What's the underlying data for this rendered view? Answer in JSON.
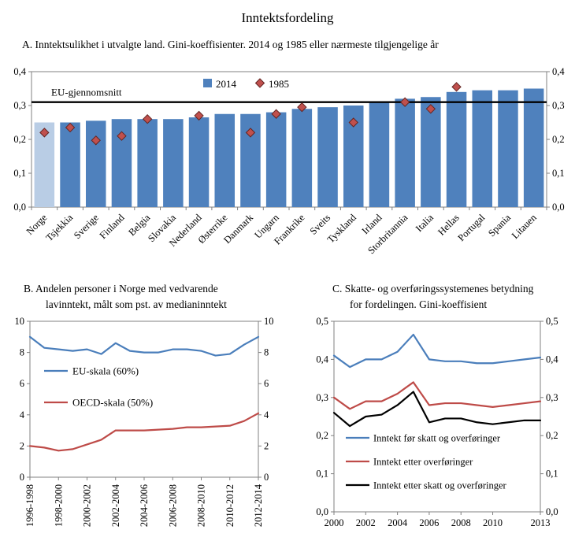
{
  "title": "Inntektsfordeling",
  "panels": {
    "a": {
      "label": "A. Inntektsulikhet i utvalgte land. Gini-koeffisienter. 2014 og 1985 eller nærmeste tilgjengelige år"
    },
    "b": {
      "line1": "B.  Andelen personer i Norge med vedvarende",
      "line2": "lavinntekt, målt som pst. av medianinntekt"
    },
    "c": {
      "line1": "C.  Skatte- og overføringssystemenes betydning",
      "line2": "for fordelingen. Gini-koeffisient"
    }
  },
  "chart_data": [
    {
      "type": "bar",
      "panel": "A",
      "categories": [
        "Norge",
        "Tsjekkia",
        "Sverige",
        "Finland",
        "Belgia",
        "Slovakia",
        "Nederland",
        "Østerrike",
        "Danmark",
        "Ungarn",
        "Frankrike",
        "Sveits",
        "Tyskland",
        "Irland",
        "Storbritannia",
        "Italia",
        "Hellas",
        "Portugal",
        "Spania",
        "Litauen"
      ],
      "series": [
        {
          "name": "2014",
          "type": "bar",
          "values": [
            0.25,
            0.25,
            0.255,
            0.26,
            0.26,
            0.26,
            0.265,
            0.275,
            0.275,
            0.28,
            0.29,
            0.295,
            0.3,
            0.31,
            0.32,
            0.325,
            0.34,
            0.345,
            0.345,
            0.35
          ]
        },
        {
          "name": "1985",
          "type": "diamond-marker",
          "values": [
            0.22,
            0.235,
            0.197,
            0.21,
            0.26,
            null,
            0.27,
            null,
            0.22,
            0.275,
            0.295,
            null,
            0.25,
            null,
            0.31,
            0.29,
            0.355,
            null,
            null,
            null
          ]
        }
      ],
      "reference_line": {
        "label": "EU-gjennomsnitt",
        "value": 0.31
      },
      "ylim": [
        0,
        0.4
      ],
      "yticks": [
        "0,0",
        "0,1",
        "0,2",
        "0,3",
        "0,4"
      ],
      "colors": {
        "bar": "#4f81bd",
        "bar_highlight": "#b9cde5",
        "marker": "#c0504d",
        "marker_border": "#632523",
        "reference": "#000000",
        "axis": "#808080"
      }
    },
    {
      "type": "line",
      "panel": "B",
      "x_tick_labels": [
        "1996-1998",
        "1998-2000",
        "2000-2002",
        "2002-2004",
        "2004-2006",
        "2006-2008",
        "2008-2010",
        "2010-2012",
        "2012-2014"
      ],
      "series": [
        {
          "name": "EU-skala (60%)",
          "color": "#4a7ebb",
          "values": [
            9.0,
            8.3,
            8.2,
            8.1,
            8.2,
            7.9,
            8.6,
            8.1,
            8.0,
            8.0,
            8.2,
            8.2,
            8.1,
            7.8,
            7.9,
            8.5,
            9.0
          ]
        },
        {
          "name": "OECD-skala (50%)",
          "color": "#be4b48",
          "values": [
            2.0,
            1.9,
            1.7,
            1.8,
            2.1,
            2.4,
            3.0,
            3.0,
            3.0,
            3.05,
            3.1,
            3.2,
            3.2,
            3.25,
            3.3,
            3.6,
            4.1
          ]
        }
      ],
      "ylim": [
        0,
        10
      ],
      "yticks": [
        "0",
        "2",
        "4",
        "6",
        "8",
        "10"
      ],
      "legend_position": "inside-left"
    },
    {
      "type": "line",
      "panel": "C",
      "x_start": 2000,
      "x_end": 2013,
      "x_tick_years": [
        2000,
        2002,
        2004,
        2006,
        2008,
        2010,
        2013
      ],
      "x_tick_labels": [
        "2000",
        "2002",
        "2004",
        "2006",
        "2008",
        "2010",
        "2013"
      ],
      "series": [
        {
          "name": "Inntekt før skatt og overføringer",
          "color": "#4a7ebb",
          "values": [
            0.41,
            0.38,
            0.4,
            0.4,
            0.42,
            0.465,
            0.4,
            0.395,
            0.395,
            0.39,
            0.39,
            0.395,
            0.4,
            0.405
          ]
        },
        {
          "name": "Inntekt etter overføringer",
          "color": "#be4b48",
          "values": [
            0.3,
            0.27,
            0.29,
            0.29,
            0.31,
            0.34,
            0.28,
            0.285,
            0.285,
            0.28,
            0.275,
            0.28,
            0.285,
            0.29
          ]
        },
        {
          "name": "Inntekt etter skatt og overføringer",
          "color": "#000000",
          "values": [
            0.26,
            0.225,
            0.25,
            0.255,
            0.28,
            0.315,
            0.235,
            0.245,
            0.245,
            0.235,
            0.23,
            0.235,
            0.24,
            0.24
          ]
        }
      ],
      "ylim": [
        0,
        0.5
      ],
      "yticks": [
        "0,0",
        "0,1",
        "0,2",
        "0,3",
        "0,4",
        "0,5"
      ],
      "legend_position": "inside-bottom"
    }
  ]
}
